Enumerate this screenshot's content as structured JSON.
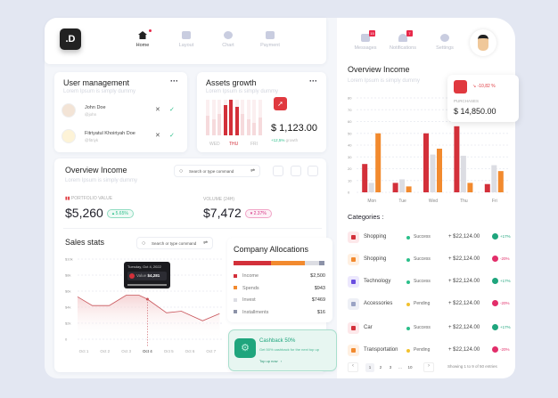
{
  "nav": {
    "logo": ".D",
    "items": [
      {
        "label": "Home",
        "active": true
      },
      {
        "label": "Layout"
      },
      {
        "label": "Chart"
      },
      {
        "label": "Payment"
      }
    ]
  },
  "topbar": {
    "items": [
      {
        "label": "Messages",
        "badge": "15"
      },
      {
        "label": "Notifications",
        "badge": "7"
      },
      {
        "label": "Settings"
      }
    ]
  },
  "user_management": {
    "title": "User management",
    "subtitle": "Lorem Ipsum is simply dummy",
    "users": [
      {
        "name": "John Doe",
        "handle": "@john"
      },
      {
        "name": "Fitriyatul Khoiriyah Doe",
        "handle": "@fitriyk"
      }
    ]
  },
  "assets_growth": {
    "title": "Assets growth",
    "subtitle": "Lorem Ipsum is simply dummy",
    "days": [
      "WED",
      "THU",
      "FRI"
    ],
    "amount": "$ 1,123.00",
    "growth": "+12,5%",
    "growth_label": "growth",
    "bars": [
      0.55,
      0.45,
      0.6,
      0.85,
      1.0,
      0.8,
      0.6,
      0.45,
      0.35,
      0.5
    ]
  },
  "overview_left": {
    "title": "Overview Income",
    "subtitle": "Lorem Ipsum is simply dummy",
    "search_placeholder": "Search or type command",
    "portfolio_label": "PORTFOLIO VALUE",
    "portfolio_value": "$5,260",
    "portfolio_change": "5.65%",
    "volume_label": "VOLUME (24H)",
    "volume_value": "$7,472",
    "volume_change": "2.37%"
  },
  "sales_stats": {
    "title": "Sales stats",
    "search_placeholder": "Search or type command",
    "tooltip_date": "Tuesday, Oct 4, 2022",
    "tooltip_label": "Value",
    "tooltip_value": "$4,281"
  },
  "allocations": {
    "title": "Company Allocations",
    "items": [
      {
        "label": "Income",
        "value": "$2,500",
        "color": "#d3303a"
      },
      {
        "label": "Spends",
        "value": "$943",
        "color": "#f28a2e"
      },
      {
        "label": "Invest",
        "value": "$7469",
        "color": "#dcdde3"
      },
      {
        "label": "Installments",
        "value": "$16",
        "color": "#8c92a8"
      }
    ]
  },
  "cashback": {
    "title": "Cashback 50%",
    "text": "Get 50% cashback for the next top up",
    "link": "Top up now"
  },
  "overview_right": {
    "title": "Overview Income",
    "subtitle": "Lorem Ipsum is simply dummy"
  },
  "purchases": {
    "change": "-10,82 %",
    "label": "PURCHASES",
    "amount": "$ 14,850.00"
  },
  "categories": {
    "title": "Categories :",
    "rows": [
      {
        "name": "Shopping",
        "status": "Success",
        "amount": "+ $22,124.00",
        "change": "+17%",
        "up": true,
        "color": "#d3303a",
        "bg": "#fde8ea",
        "scolor": "#2bbf8a"
      },
      {
        "name": "Shopping",
        "status": "Success",
        "amount": "+ $22,124.00",
        "change": "-20%",
        "up": false,
        "color": "#f28a2e",
        "bg": "#fff0e2",
        "scolor": "#2bbf8a"
      },
      {
        "name": "Technology",
        "status": "Success",
        "amount": "+ $22,124.00",
        "change": "+17%",
        "up": true,
        "color": "#6a4de0",
        "bg": "#ece8fd",
        "scolor": "#2bbf8a"
      },
      {
        "name": "Accessories",
        "status": "Pending",
        "amount": "+ $22,124.00",
        "change": "-20%",
        "up": false,
        "color": "#9aa3c4",
        "bg": "#eef0f6",
        "scolor": "#f2c12e"
      },
      {
        "name": "Car",
        "status": "Success",
        "amount": "+ $22,124.00",
        "change": "+17%",
        "up": true,
        "color": "#d3303a",
        "bg": "#fde8ea",
        "scolor": "#2bbf8a"
      },
      {
        "name": "Transportation",
        "status": "Pending",
        "amount": "+ $22,124.00",
        "change": "-20%",
        "up": false,
        "color": "#f28a2e",
        "bg": "#fff0e2",
        "scolor": "#f2c12e"
      }
    ]
  },
  "pagination": {
    "pages": [
      "1",
      "2",
      "3",
      "...",
      "10"
    ],
    "info": "Showing 1 to 9 of 50 entries"
  },
  "chart_data": [
    {
      "type": "bar",
      "categories": [
        "Mon",
        "Tue",
        "Wed",
        "Thu",
        "Fri"
      ],
      "ylim": [
        0,
        80
      ],
      "yticks": [
        "0",
        "10",
        "20",
        "30",
        "40",
        "50",
        "60",
        "70",
        "80"
      ],
      "grid": true,
      "series": [
        {
          "color": "#d3303a",
          "values": [
            24,
            8,
            50,
            56,
            7
          ]
        },
        {
          "color": "#dcdde3",
          "values": [
            8,
            11,
            32,
            31,
            23
          ]
        },
        {
          "color": "#f28a2e",
          "values": [
            50,
            5,
            37,
            8,
            18
          ]
        }
      ]
    },
    {
      "type": "area",
      "categories": [
        "Oct 1",
        "Oct 2",
        "Oct 3",
        "Oct 4",
        "Oct 5",
        "Oct 6",
        "Oct 7"
      ],
      "yticks": [
        "0",
        "$2k",
        "$4k",
        "$6k",
        "$8k",
        "$10k"
      ],
      "ylim": [
        0,
        10000
      ],
      "grid": true,
      "x": [
        0.6,
        1.4,
        2.2,
        3.0,
        3.6,
        4.0,
        4.9,
        5.6,
        6.6,
        7.4
      ],
      "values": [
        5300,
        4200,
        4200,
        5500,
        5500,
        5000,
        3300,
        3500,
        2300,
        3200
      ],
      "color": "#c8545a"
    }
  ]
}
